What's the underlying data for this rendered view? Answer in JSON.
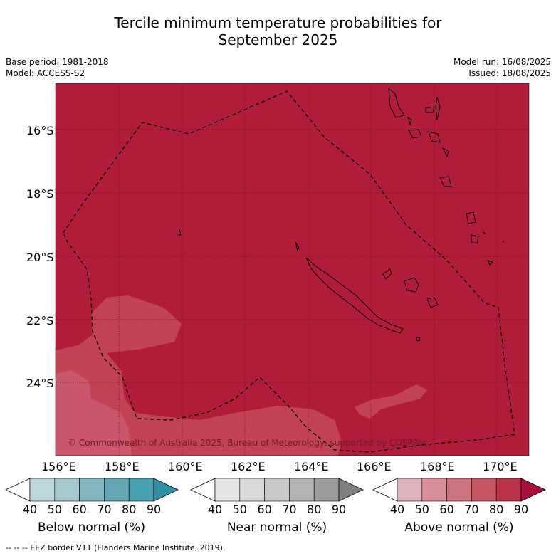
{
  "title_line1": "Tercile minimum temperature probabilities for",
  "title_line2": "September 2025",
  "base_period": "Base period: 1981-2018",
  "model": "Model: ACCESS-S2",
  "model_run": "Model run: 16/08/2025",
  "issued": "Issued: 18/08/2025",
  "copyright": "© Commonwealth of Australia 2025, Bureau of Meteorology, supported by COSPPac",
  "map": {
    "lon_ticks": [
      "156°E",
      "158°E",
      "160°E",
      "162°E",
      "164°E",
      "166°E",
      "168°E",
      "170°E"
    ],
    "lat_ticks": [
      "16°S",
      "18°S",
      "20°S",
      "22°S",
      "24°S"
    ],
    "ocean_color": "#b11c3a",
    "light_region_color": "#c24257",
    "lighter_region_color": "#c9566a",
    "eez_color": "#000000"
  },
  "colorbars": [
    {
      "label": "Below normal (%)",
      "ticks": [
        "40",
        "50",
        "60",
        "70",
        "80",
        "90"
      ],
      "colors": [
        "#ffffff",
        "#bfd5dc",
        "#a6c8cf",
        "#86b6c1",
        "#65a6b4",
        "#46a0b0",
        "#2f8fa3"
      ]
    },
    {
      "label": "Near normal (%)",
      "ticks": [
        "40",
        "50",
        "60",
        "70",
        "80",
        "90"
      ],
      "colors": [
        "#ffffff",
        "#e6e6e6",
        "#d9d9d9",
        "#c9c9c9",
        "#b3b3b3",
        "#9c9c9c",
        "#808080"
      ]
    },
    {
      "label": "Above normal (%)",
      "ticks": [
        "40",
        "50",
        "60",
        "70",
        "80",
        "90"
      ],
      "colors": [
        "#ffffff",
        "#e0b4bd",
        "#d88f9a",
        "#cc7581",
        "#c45565",
        "#b93349",
        "#a8123a"
      ]
    }
  ],
  "footer": "--  --  -- EEZ border V11 (Flanders Marine Institute, 2019)."
}
